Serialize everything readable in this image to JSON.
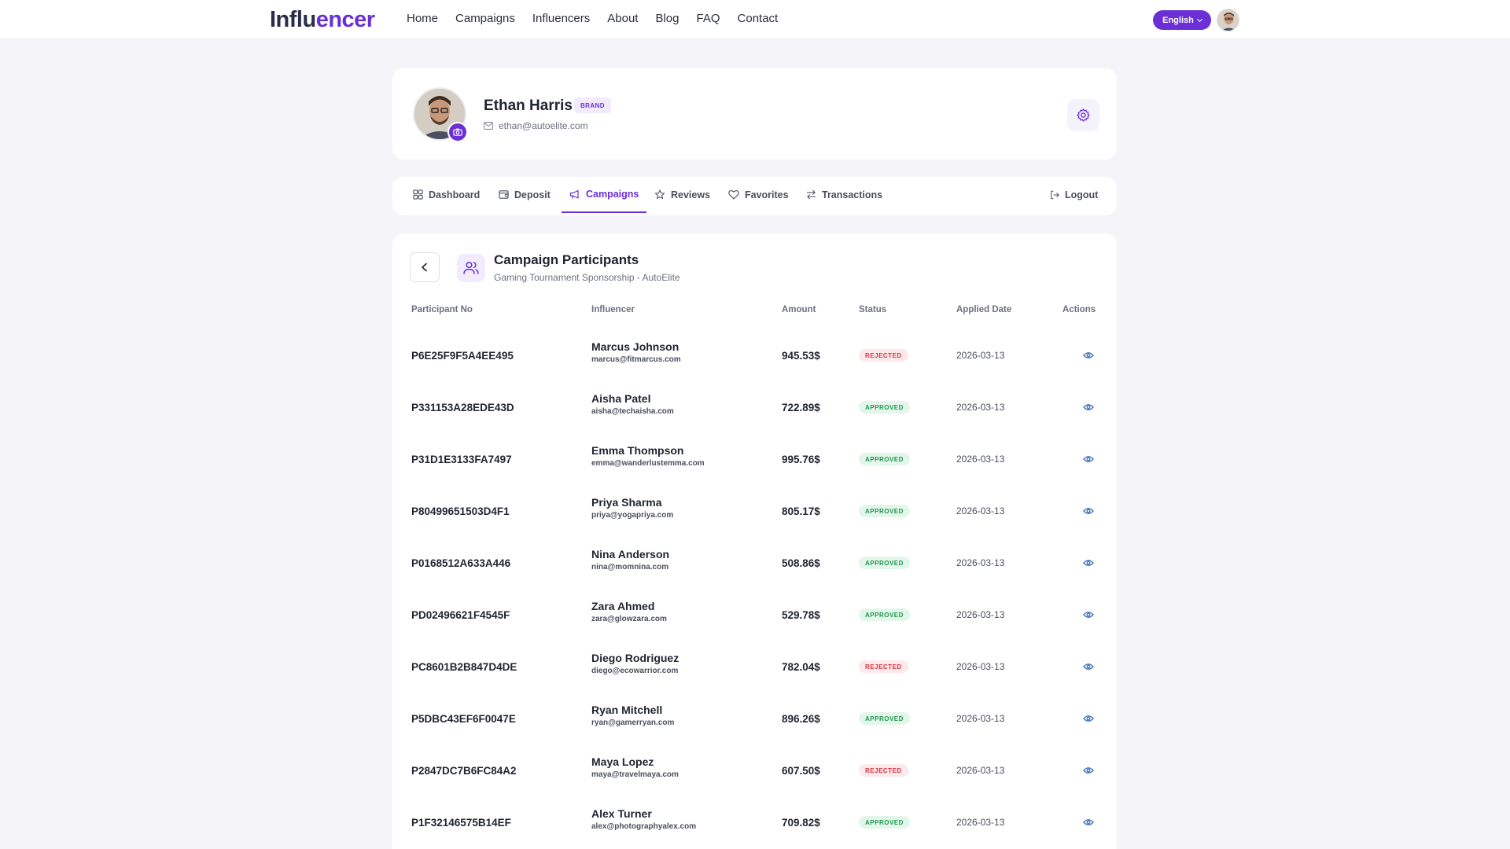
{
  "header": {
    "logo_part1": "Influ",
    "logo_part2": "encer",
    "nav": [
      "Home",
      "Campaigns",
      "Influencers",
      "About",
      "Blog",
      "FAQ",
      "Contact"
    ],
    "language": "English"
  },
  "profile": {
    "name": "Ethan Harris",
    "role_badge": "BRAND",
    "email": "ethan@autoelite.com"
  },
  "tabs": [
    {
      "label": "Dashboard",
      "icon": "grid-icon"
    },
    {
      "label": "Deposit",
      "icon": "wallet-icon"
    },
    {
      "label": "Campaigns",
      "icon": "megaphone-icon",
      "active": true
    },
    {
      "label": "Reviews",
      "icon": "star-icon"
    },
    {
      "label": "Favorites",
      "icon": "heart-icon"
    },
    {
      "label": "Transactions",
      "icon": "arrows-icon"
    }
  ],
  "logout_label": "Logout",
  "participants": {
    "title": "Campaign Participants",
    "subtitle": "Gaming Tournament Sponsorship - AutoElite",
    "columns": {
      "id": "Participant No",
      "influencer": "Influencer",
      "amount": "Amount",
      "status": "Status",
      "date": "Applied Date",
      "actions": "Actions"
    },
    "rows": [
      {
        "id": "P6E25F9F5A4EE495",
        "name": "Marcus Johnson",
        "email": "marcus@fitmarcus.com",
        "amount": "945.53$",
        "status": "REJECTED",
        "date": "2026-03-13"
      },
      {
        "id": "P331153A28EDE43D",
        "name": "Aisha Patel",
        "email": "aisha@techaisha.com",
        "amount": "722.89$",
        "status": "APPROVED",
        "date": "2026-03-13"
      },
      {
        "id": "P31D1E3133FA7497",
        "name": "Emma Thompson",
        "email": "emma@wanderlustemma.com",
        "amount": "995.76$",
        "status": "APPROVED",
        "date": "2026-03-13"
      },
      {
        "id": "P80499651503D4F1",
        "name": "Priya Sharma",
        "email": "priya@yogapriya.com",
        "amount": "805.17$",
        "status": "APPROVED",
        "date": "2026-03-13"
      },
      {
        "id": "P0168512A633A446",
        "name": "Nina Anderson",
        "email": "nina@momnina.com",
        "amount": "508.86$",
        "status": "APPROVED",
        "date": "2026-03-13"
      },
      {
        "id": "PD02496621F4545F",
        "name": "Zara Ahmed",
        "email": "zara@glowzara.com",
        "amount": "529.78$",
        "status": "APPROVED",
        "date": "2026-03-13"
      },
      {
        "id": "PC8601B2B847D4DE",
        "name": "Diego Rodriguez",
        "email": "diego@ecowarrior.com",
        "amount": "782.04$",
        "status": "REJECTED",
        "date": "2026-03-13"
      },
      {
        "id": "P5DBC43EF6F0047E",
        "name": "Ryan Mitchell",
        "email": "ryan@gamerryan.com",
        "amount": "896.26$",
        "status": "APPROVED",
        "date": "2026-03-13"
      },
      {
        "id": "P2847DC7B6FC84A2",
        "name": "Maya Lopez",
        "email": "maya@travelmaya.com",
        "amount": "607.50$",
        "status": "REJECTED",
        "date": "2026-03-13"
      },
      {
        "id": "P1F32146575B14EF",
        "name": "Alex Turner",
        "email": "alex@photographyalex.com",
        "amount": "709.82$",
        "status": "APPROVED",
        "date": "2026-03-13"
      }
    ]
  },
  "colors": {
    "accent": "#6a2fd6",
    "rejected": "#d6323f",
    "approved": "#20954f"
  }
}
